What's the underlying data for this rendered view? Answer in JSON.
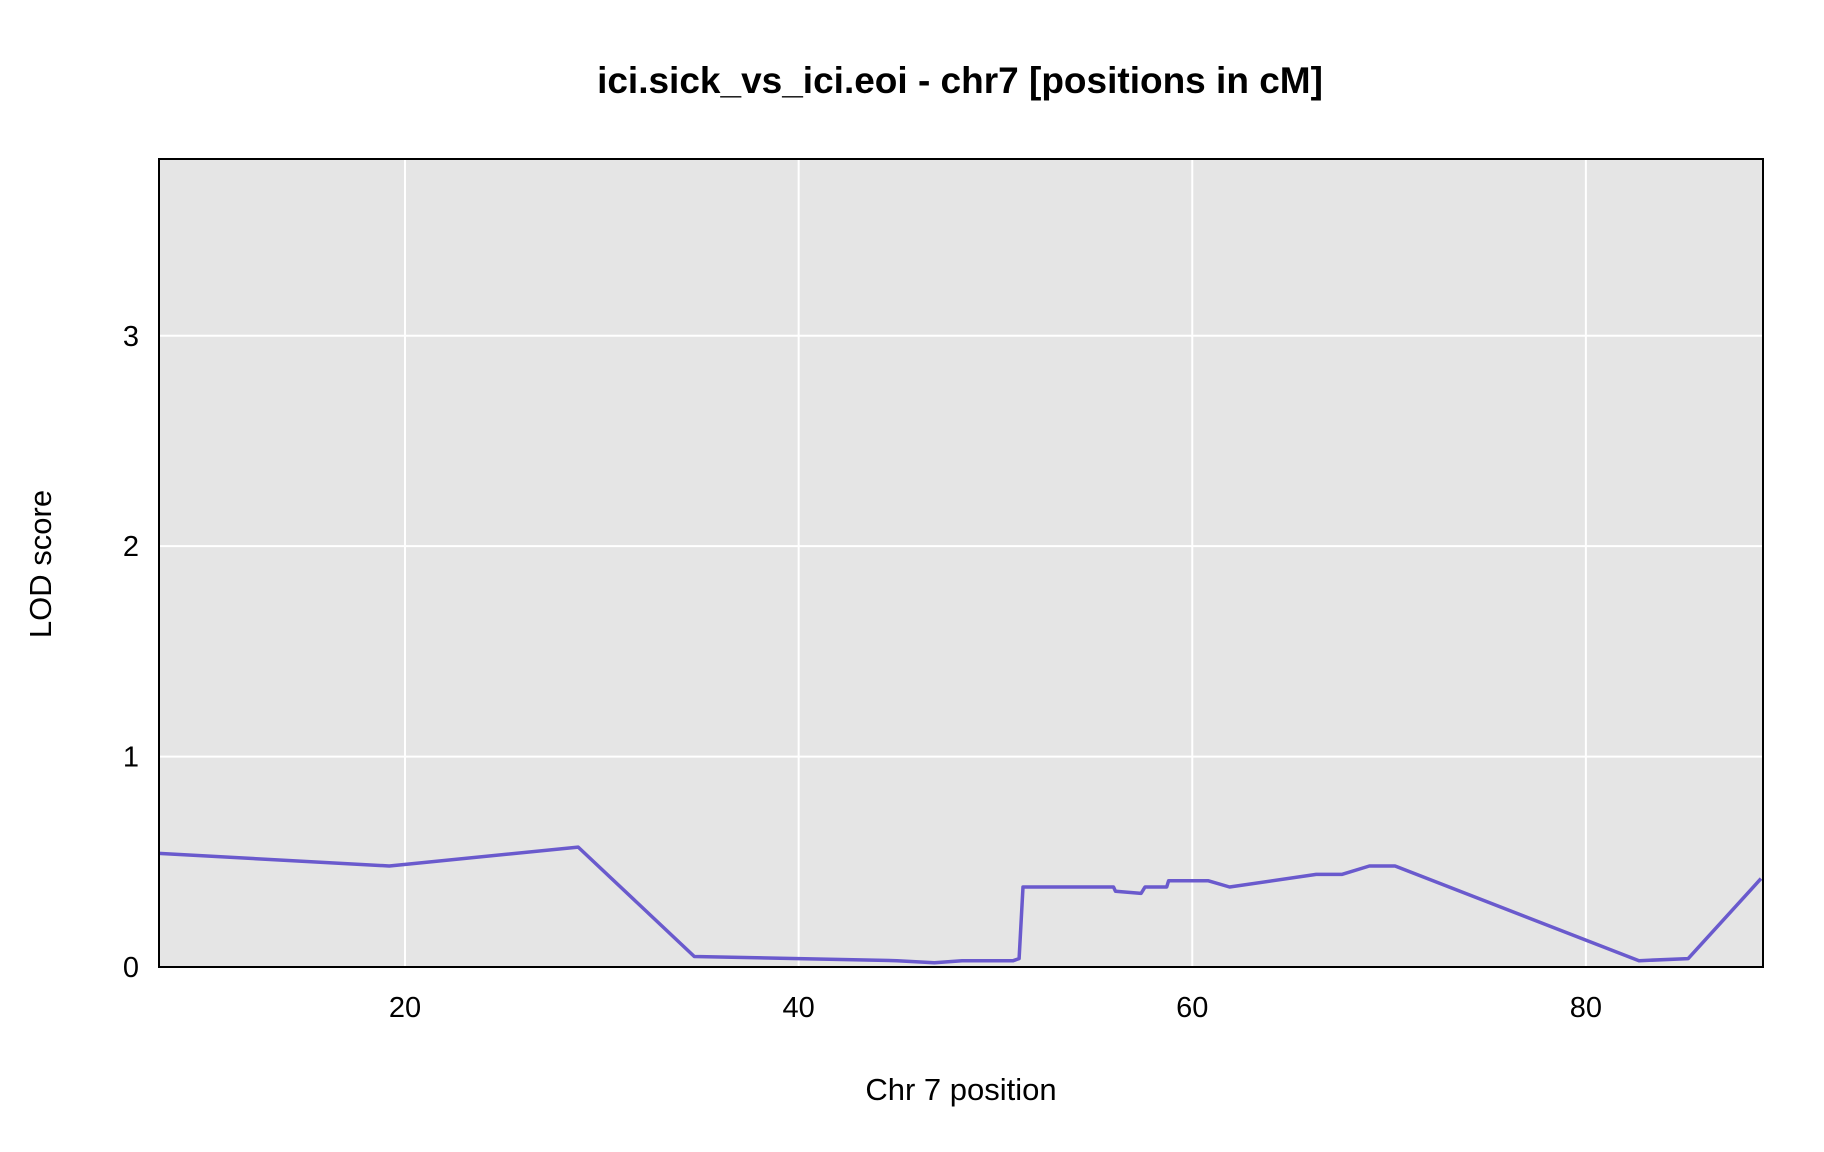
{
  "chart_data": {
    "type": "line",
    "title": "ici.sick_vs_ici.eoi - chr7 [positions in cM]",
    "xlabel": "Chr 7 position",
    "ylabel": "LOD score",
    "xlim": [
      7.5,
      89
    ],
    "ylim": [
      0,
      3.84
    ],
    "xticks": [
      20,
      40,
      60,
      80
    ],
    "yticks": [
      0,
      1,
      2,
      3
    ],
    "grid": true,
    "legend": "none",
    "colors": {
      "line": "#6a5acd",
      "panel": "#e5e5e5",
      "grid": "#ffffff",
      "frame": "#000000"
    },
    "series": [
      {
        "x": [
          7.5,
          19.2,
          28.8,
          34.7,
          45.0,
          46.9,
          48.3,
          50.9,
          51.2,
          51.4,
          56.0,
          56.1,
          57.4,
          57.6,
          58.7,
          58.8,
          60.8,
          61.9,
          66.3,
          67.6,
          69.0,
          70.3,
          82.7,
          85.2,
          88.9
        ],
        "y": [
          0.54,
          0.48,
          0.57,
          0.05,
          0.03,
          0.02,
          0.03,
          0.03,
          0.04,
          0.38,
          0.38,
          0.36,
          0.35,
          0.38,
          0.38,
          0.41,
          0.41,
          0.38,
          0.44,
          0.44,
          0.48,
          0.48,
          0.03,
          0.04,
          0.42
        ]
      }
    ]
  }
}
